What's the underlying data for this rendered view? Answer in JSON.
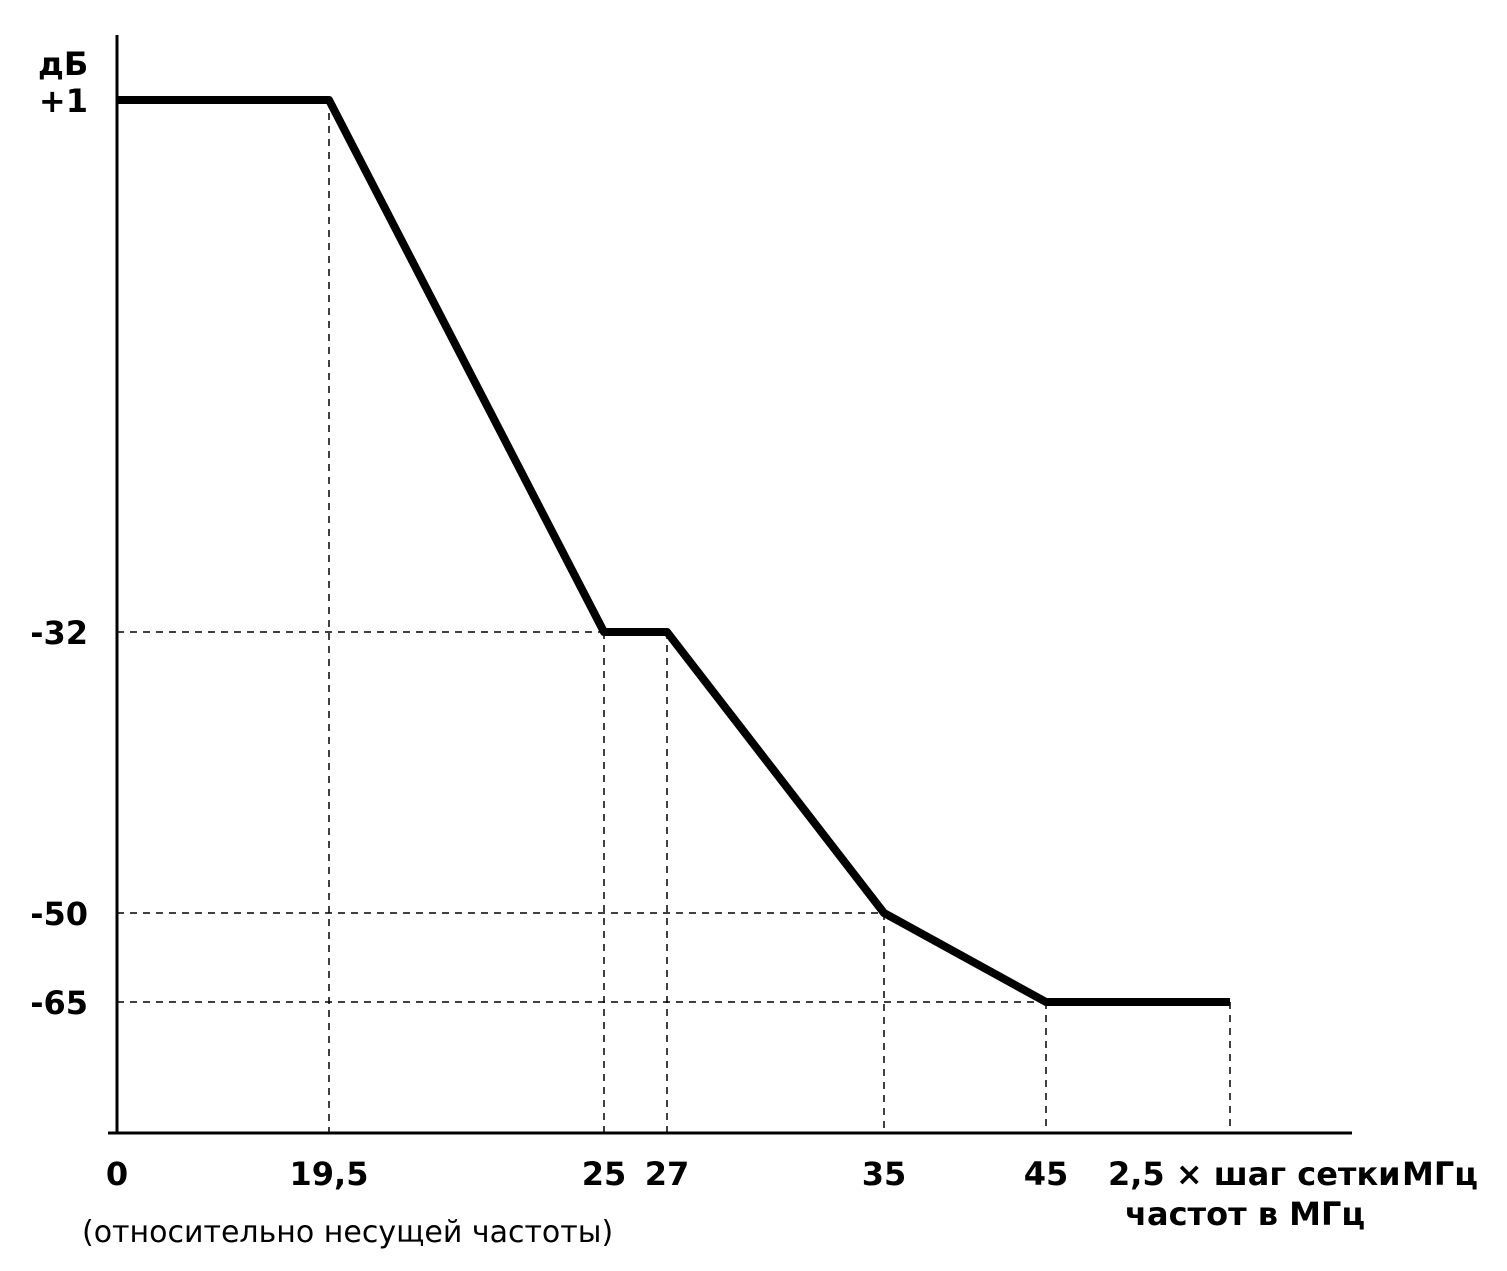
{
  "chart_data": {
    "type": "line",
    "y_unit_label": "дБ",
    "x_unit_label": "МГц",
    "x_note": "(относительно несущей частоты)",
    "x_end_label_line1": "2,5 × шаг сетки",
    "x_end_label_line2": "частот в МГц",
    "x_ticks": [
      {
        "value": 0,
        "label": "0"
      },
      {
        "value": 19.5,
        "label": "19,5"
      },
      {
        "value": 25,
        "label": "25"
      },
      {
        "value": 27,
        "label": "27"
      },
      {
        "value": 35,
        "label": "35"
      },
      {
        "value": 45,
        "label": "45"
      }
    ],
    "y_ticks": [
      {
        "value": 1,
        "label": "+1"
      },
      {
        "value": -32,
        "label": "-32"
      },
      {
        "value": -50,
        "label": "-50"
      },
      {
        "value": -65,
        "label": "-65"
      }
    ],
    "series": [
      {
        "points": [
          {
            "x": 0,
            "y": 1
          },
          {
            "x": 19.5,
            "y": 1
          },
          {
            "x": 25,
            "y": -32
          },
          {
            "x": 27,
            "y": -32
          },
          {
            "x": 35,
            "y": -50
          },
          {
            "x": 45,
            "y": -65
          },
          {
            "x": "2,5 × шаг сетки частот в МГц",
            "y": -65
          }
        ]
      }
    ],
    "grid": "dashed guide lines at breakpoints",
    "legend": "none"
  }
}
